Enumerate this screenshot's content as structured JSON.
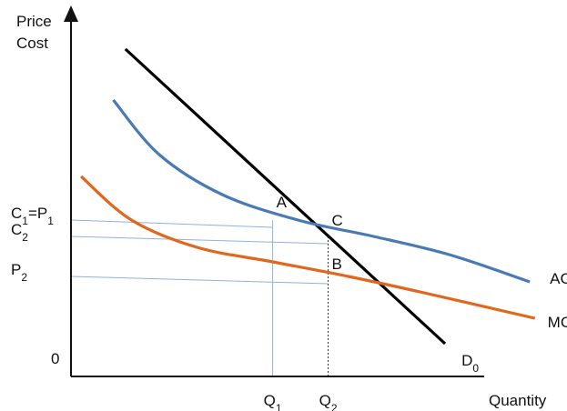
{
  "chart_data": {
    "type": "line",
    "title": "",
    "ylabel_lines": [
      "Price",
      "Cost"
    ],
    "xlabel": "Quantity",
    "origin_label": "0",
    "grid": false,
    "xlim": [
      0,
      10
    ],
    "ylim": [
      0,
      10
    ],
    "series": [
      {
        "name": "D0",
        "label": {
          "main": "D",
          "sub": "0"
        },
        "color": "#000000",
        "x": [
          1.08,
          7.42
        ],
        "y": [
          9.0,
          0.9
        ]
      },
      {
        "name": "AC",
        "label": {
          "main": "AC",
          "sub": ""
        },
        "color": "#4a7ab5",
        "x": [
          0.84,
          1.75,
          3.0,
          4.5,
          6.0,
          7.5,
          9.1
        ],
        "y": [
          7.6,
          6.1,
          5.0,
          4.3,
          3.85,
          3.35,
          2.6
        ]
      },
      {
        "name": "MC",
        "label": {
          "main": "MC",
          "sub": ""
        },
        "color": "#e0671b",
        "x": [
          0.2,
          1.2,
          2.5,
          4.0,
          5.5,
          7.0,
          9.2
        ],
        "y": [
          5.5,
          4.3,
          3.55,
          3.15,
          2.75,
          2.3,
          1.6
        ]
      }
    ],
    "points": [
      {
        "name": "A",
        "x": 4.0,
        "y": 4.3
      },
      {
        "name": "B",
        "x": 5.1,
        "y": 2.75
      },
      {
        "name": "C",
        "x": 5.1,
        "y": 3.85
      }
    ],
    "y_ticks": [
      {
        "main": "C",
        "sub": "1",
        "rest": "=P",
        "sub2": "1",
        "value": 4.3
      },
      {
        "main": "C",
        "sub": "2",
        "rest": "",
        "sub2": "",
        "value": 3.85
      },
      {
        "main": "P",
        "sub": "2",
        "rest": "",
        "sub2": "",
        "value": 2.75
      }
    ],
    "x_ticks": [
      {
        "main": "Q",
        "sub": "1",
        "value": 4.0
      },
      {
        "main": "Q",
        "sub": "2",
        "value": 5.1
      }
    ]
  }
}
